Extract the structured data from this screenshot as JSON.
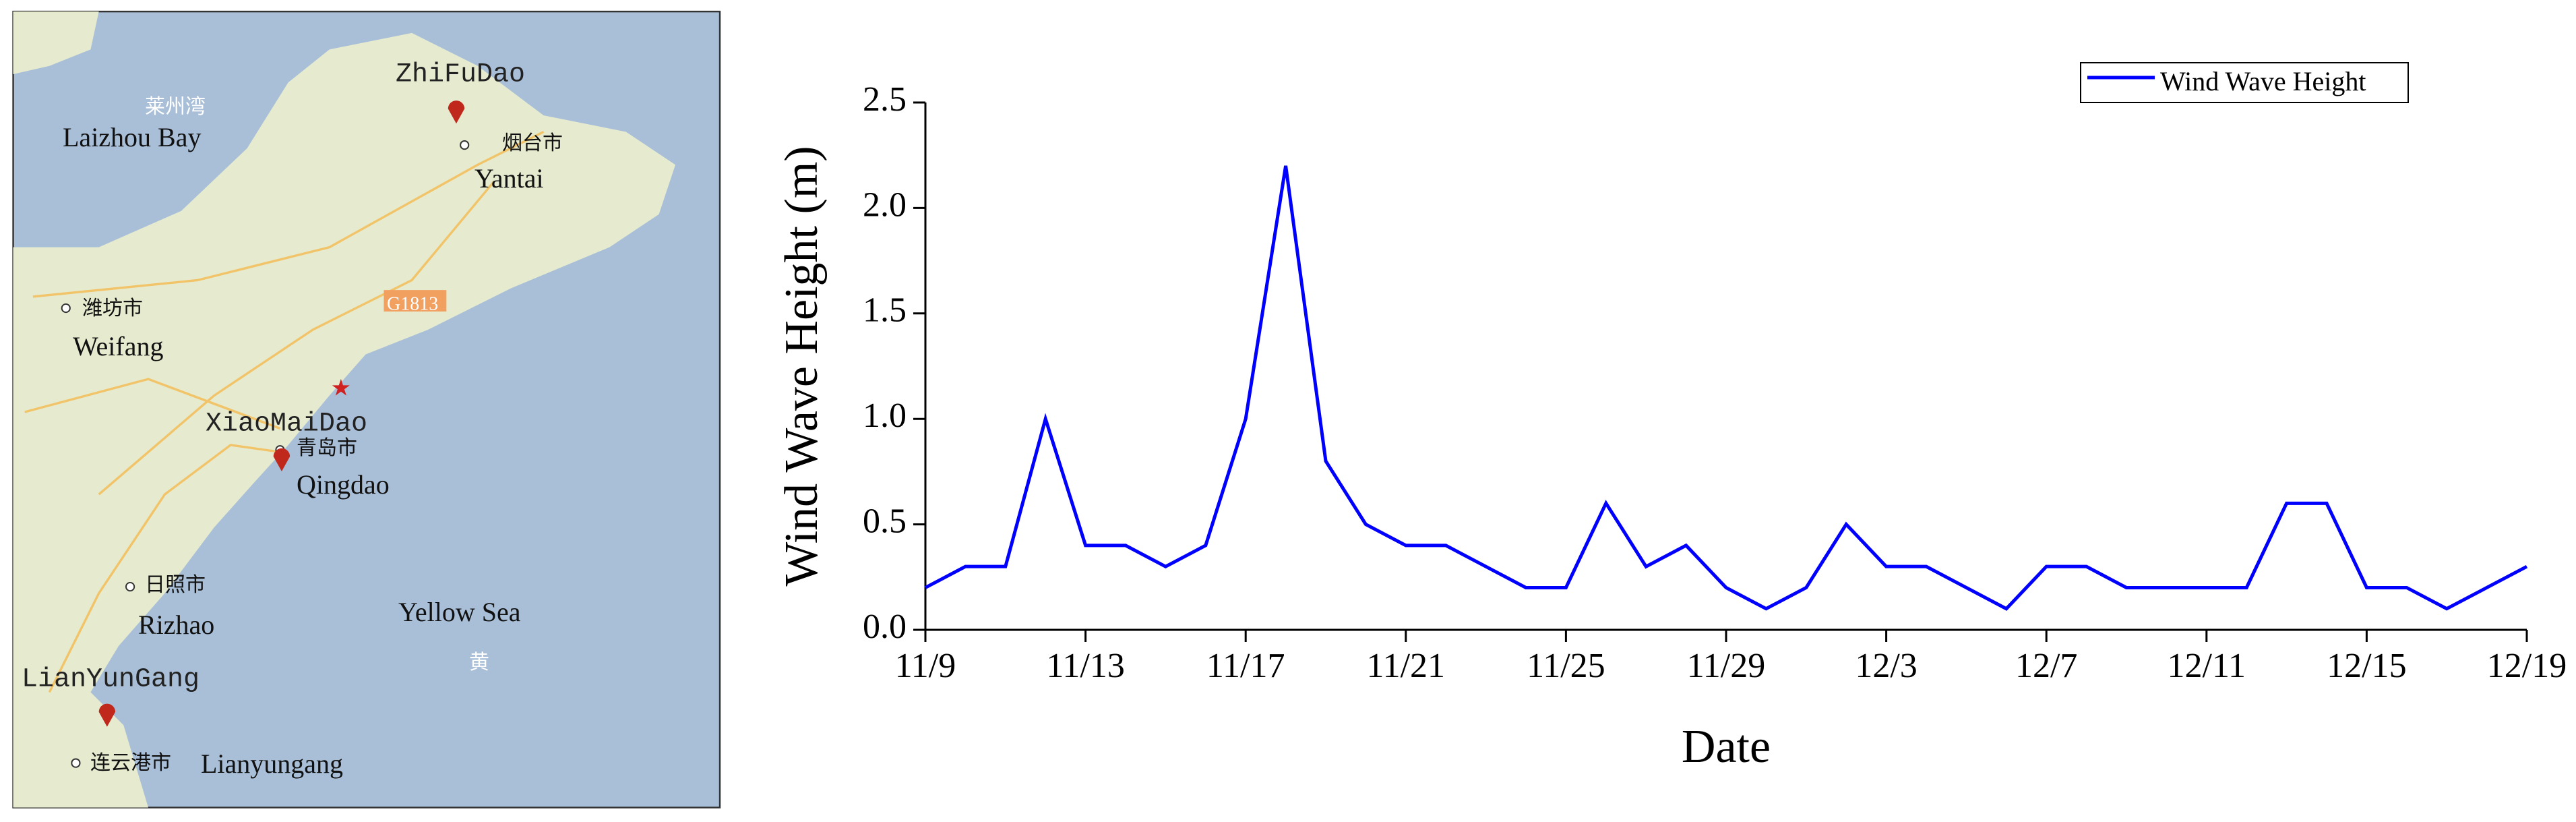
{
  "map": {
    "labels": [
      "ZhiFuDao",
      "烟台市",
      "Yantai",
      "莱州湾",
      "Laizhou Bay",
      "潍坊市",
      "Weifang",
      "G1813",
      "XiaoMaiDao",
      "青岛市",
      "Qingdao",
      "日照市",
      "Rizhao",
      "Yellow Sea",
      "黄",
      "LianYunGang",
      "连云港市",
      "Lianyungang"
    ]
  },
  "chart_data": {
    "type": "line",
    "x_label": "Date",
    "y_label": "Wind Wave Height (m)",
    "x": [
      "11/9",
      "11/10",
      "11/11",
      "11/12",
      "11/13",
      "11/14",
      "11/15",
      "11/16",
      "11/17",
      "11/18",
      "11/19",
      "11/20",
      "11/21",
      "11/22",
      "11/23",
      "11/24",
      "11/25",
      "11/26",
      "11/27",
      "11/28",
      "11/29",
      "11/30",
      "12/1",
      "12/2",
      "12/3",
      "12/4",
      "12/5",
      "12/6",
      "12/7",
      "12/8",
      "12/9",
      "12/10",
      "12/11",
      "12/12",
      "12/13",
      "12/14",
      "12/15",
      "12/16",
      "12/17",
      "12/18",
      "12/19"
    ],
    "xlim": [
      "11/9",
      "12/19"
    ],
    "xticks": [
      "11/9",
      "11/13",
      "11/17",
      "11/21",
      "11/25",
      "11/29",
      "12/3",
      "12/7",
      "12/11",
      "12/15",
      "12/19"
    ],
    "ylim": [
      0,
      2.5
    ],
    "yticks": [
      {
        "value": 0,
        "label": "0.0"
      },
      0.5,
      {
        "value": 1,
        "label": "1.0"
      },
      1.5,
      {
        "value": 2,
        "label": "2.0"
      },
      2.5
    ],
    "legend": "upper right",
    "series": [
      {
        "name": "Wind Wave Height",
        "color": "#0000ff",
        "values": [
          0.2,
          0.3,
          0.3,
          1.0,
          0.4,
          0.4,
          0.3,
          0.4,
          1.0,
          2.2,
          0.8,
          0.5,
          0.4,
          0.4,
          0.3,
          0.2,
          0.2,
          0.6,
          0.3,
          0.4,
          0.2,
          0.1,
          0.2,
          0.5,
          0.3,
          0.3,
          0.2,
          0.1,
          0.3,
          0.3,
          0.2,
          0.2,
          0.2,
          0.2,
          0.6,
          0.6,
          0.2,
          0.2,
          0.1,
          0.2,
          0.3
        ]
      }
    ]
  }
}
